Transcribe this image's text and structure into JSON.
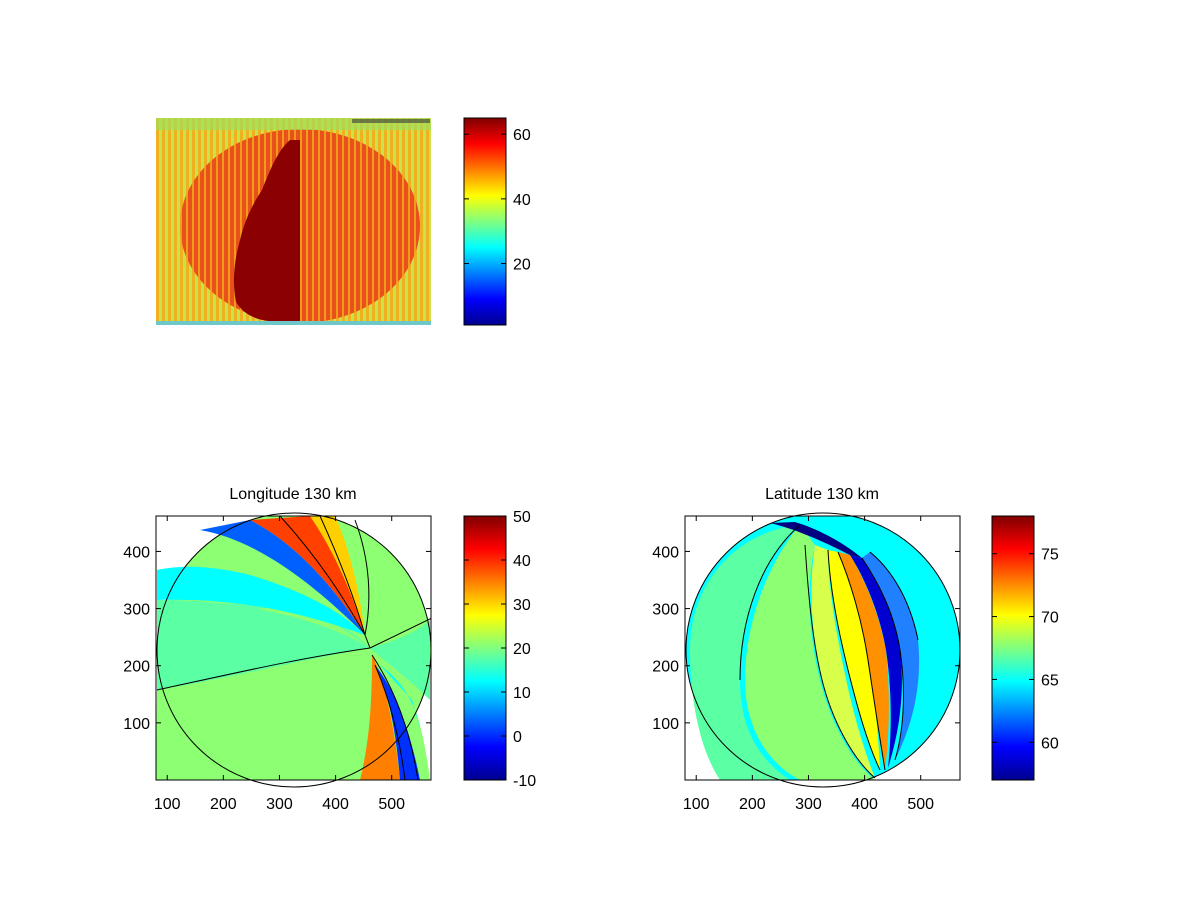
{
  "chart_data": [
    {
      "type": "heatmap",
      "title": "",
      "xlabel": "",
      "ylabel": "",
      "show_axis_ticks": false,
      "colormap": "jet",
      "colorbar": {
        "range": [
          1,
          65
        ],
        "ticks": [
          20,
          40,
          60
        ]
      },
      "description_values": {
        "background_level": 47,
        "disk_level": 56,
        "dark_region_level": 65
      }
    },
    {
      "type": "heatmap",
      "title": "Longitude 130 km",
      "xlabel": "",
      "ylabel": "",
      "colormap": "jet",
      "xlim": [
        80,
        570
      ],
      "ylim": [
        0,
        462
      ],
      "xticks": [
        100,
        200,
        300,
        400,
        500
      ],
      "yticks": [
        100,
        200,
        300,
        400
      ],
      "disk": {
        "center": [
          326,
          227
        ],
        "radius": 245
      },
      "colorbar": {
        "range": [
          -10,
          50
        ],
        "ticks": [
          -10,
          0,
          10,
          20,
          30,
          40,
          50
        ]
      },
      "region_values": {
        "left_region": 18,
        "lower_region": 22,
        "upper_right_region": 24,
        "upper_band": 14
      }
    },
    {
      "type": "heatmap",
      "title": "Latitude 130 km",
      "xlabel": "",
      "ylabel": "",
      "colormap": "jet",
      "xlim": [
        80,
        570
      ],
      "ylim": [
        0,
        462
      ],
      "xticks": [
        100,
        200,
        300,
        400,
        500
      ],
      "yticks": [
        100,
        200,
        300,
        400
      ],
      "disk": {
        "center": [
          326,
          227
        ],
        "radius": 245
      },
      "colorbar": {
        "range": [
          57,
          78
        ],
        "ticks": [
          60,
          65,
          70,
          75
        ]
      },
      "region_values": {
        "left_region": 66.5,
        "middle_region": 68.5,
        "outer_band": 65.5
      }
    }
  ]
}
